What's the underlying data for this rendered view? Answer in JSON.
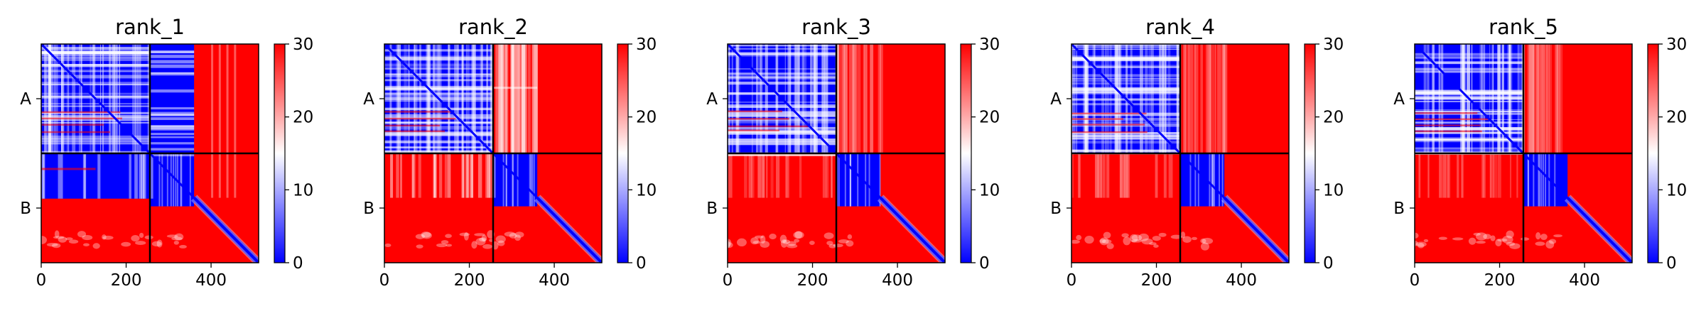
{
  "chart_data": [
    {
      "type": "heatmap",
      "title": "rank_1",
      "xlim": [
        0,
        512
      ],
      "ylim": [
        512,
        0
      ],
      "x_ticks": [
        0,
        200,
        400
      ],
      "y_tick_labels": [
        "A",
        "B"
      ],
      "chain_boundary": 256,
      "dense_block_end": 360,
      "colorbar": {
        "min": 0,
        "max": 30,
        "ticks": [
          0,
          10,
          20,
          30
        ],
        "colormap": "bwr"
      },
      "off_diagonal_low_error": {
        "AB": "partial-blue",
        "BA": "partial-blue"
      }
    },
    {
      "type": "heatmap",
      "title": "rank_2",
      "xlim": [
        0,
        512
      ],
      "ylim": [
        512,
        0
      ],
      "x_ticks": [
        0,
        200,
        400
      ],
      "y_tick_labels": [
        "A",
        "B"
      ],
      "chain_boundary": 256,
      "dense_block_end": 360,
      "colorbar": {
        "min": 0,
        "max": 30,
        "ticks": [
          0,
          10,
          20,
          30
        ],
        "colormap": "bwr"
      },
      "off_diagonal_low_error": {
        "AB": "light-striped",
        "BA": "light-striped"
      }
    },
    {
      "type": "heatmap",
      "title": "rank_3",
      "xlim": [
        0,
        512
      ],
      "ylim": [
        512,
        0
      ],
      "x_ticks": [
        0,
        200,
        400
      ],
      "y_tick_labels": [
        "A",
        "B"
      ],
      "chain_boundary": 256,
      "dense_block_end": 360,
      "colorbar": {
        "min": 0,
        "max": 30,
        "ticks": [
          0,
          10,
          20,
          30
        ],
        "colormap": "bwr"
      },
      "off_diagonal_low_error": {
        "AB": "faint",
        "BA": "faint"
      }
    },
    {
      "type": "heatmap",
      "title": "rank_4",
      "xlim": [
        0,
        512
      ],
      "ylim": [
        512,
        0
      ],
      "x_ticks": [
        0,
        200,
        400
      ],
      "y_tick_labels": [
        "A",
        "B"
      ],
      "chain_boundary": 256,
      "dense_block_end": 360,
      "colorbar": {
        "min": 0,
        "max": 30,
        "ticks": [
          0,
          10,
          20,
          30
        ],
        "colormap": "bwr"
      },
      "off_diagonal_low_error": {
        "AB": "faint",
        "BA": "faint"
      }
    },
    {
      "type": "heatmap",
      "title": "rank_5",
      "xlim": [
        0,
        512
      ],
      "ylim": [
        512,
        0
      ],
      "x_ticks": [
        0,
        200,
        400
      ],
      "y_tick_labels": [
        "A",
        "B"
      ],
      "chain_boundary": 256,
      "dense_block_end": 360,
      "colorbar": {
        "min": 0,
        "max": 30,
        "ticks": [
          0,
          10,
          20,
          30
        ],
        "colormap": "bwr"
      },
      "off_diagonal_low_error": {
        "AB": "faint",
        "BA": "faint"
      }
    }
  ],
  "colors": {
    "low": "#0000ff",
    "mid": "#ffffff",
    "high": "#ff0000",
    "divider": "#000000"
  }
}
